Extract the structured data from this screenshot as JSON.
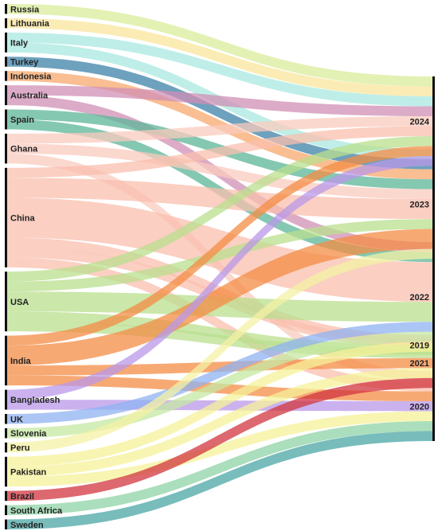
{
  "chart_data": {
    "type": "sankey",
    "sources": [
      {
        "id": "russia",
        "label": "Russia"
      },
      {
        "id": "lithuania",
        "label": "Lithuania"
      },
      {
        "id": "italy",
        "label": "Italy"
      },
      {
        "id": "turkey",
        "label": "Turkey"
      },
      {
        "id": "indonesia",
        "label": "Indonesia"
      },
      {
        "id": "australia",
        "label": "Australia"
      },
      {
        "id": "spain",
        "label": "Spain"
      },
      {
        "id": "ghana",
        "label": "Ghana"
      },
      {
        "id": "china",
        "label": "China"
      },
      {
        "id": "usa",
        "label": "USA"
      },
      {
        "id": "india",
        "label": "India"
      },
      {
        "id": "bangladesh",
        "label": "Bangladesh"
      },
      {
        "id": "uk",
        "label": "UK"
      },
      {
        "id": "slovenia",
        "label": "Slovenia"
      },
      {
        "id": "peru",
        "label": "Peru"
      },
      {
        "id": "pakistan",
        "label": "Pakistan"
      },
      {
        "id": "brazil",
        "label": "Brazil"
      },
      {
        "id": "south_africa",
        "label": "South Africa"
      },
      {
        "id": "sweden",
        "label": "Sweden"
      }
    ],
    "targets": [
      {
        "id": "y2024",
        "label": "2024"
      },
      {
        "id": "y2023",
        "label": "2023"
      },
      {
        "id": "y2022",
        "label": "2022"
      },
      {
        "id": "y2019",
        "label": "2019"
      },
      {
        "id": "y2021",
        "label": "2021"
      },
      {
        "id": "y2020",
        "label": "2020"
      }
    ],
    "colors": {
      "russia": "#d9ec9b",
      "lithuania": "#fae59c",
      "italy": "#a9e8e0",
      "turkey": "#3d82a7",
      "indonesia": "#f7a86c",
      "australia": "#d08fb5",
      "spain": "#5cb598",
      "ghana": "#f9cbbd",
      "china": "#f9bfae",
      "usa": "#b9df8e",
      "india": "#f48c44",
      "bangladesh": "#b998e8",
      "uk": "#8fb3f2",
      "slovenia": "#c6e8a3",
      "peru": "#f4f2a4",
      "pakistan": "#f6f29a",
      "brazil": "#d2353f",
      "south_africa": "#8fd3a6",
      "sweden": "#4ba6a6"
    },
    "links": [
      {
        "source": "russia",
        "target": "y2024",
        "value": 1
      },
      {
        "source": "lithuania",
        "target": "y2024",
        "value": 1
      },
      {
        "source": "italy",
        "target": "y2024",
        "value": 1
      },
      {
        "source": "italy",
        "target": "y2023",
        "value": 1
      },
      {
        "source": "turkey",
        "target": "y2023",
        "value": 1
      },
      {
        "source": "indonesia",
        "target": "y2023",
        "value": 1
      },
      {
        "source": "australia",
        "target": "y2024",
        "value": 1
      },
      {
        "source": "australia",
        "target": "y2022",
        "value": 1
      },
      {
        "source": "spain",
        "target": "y2023",
        "value": 1
      },
      {
        "source": "spain",
        "target": "y2022",
        "value": 1
      },
      {
        "source": "ghana",
        "target": "y2024",
        "value": 1
      },
      {
        "source": "ghana",
        "target": "y2023",
        "value": 1
      },
      {
        "source": "ghana",
        "target": "y2020",
        "value": 1
      },
      {
        "source": "china",
        "target": "y2024",
        "value": 1
      },
      {
        "source": "china",
        "target": "y2023",
        "value": 2
      },
      {
        "source": "china",
        "target": "y2022",
        "value": 4
      },
      {
        "source": "china",
        "target": "y2019",
        "value": 1
      },
      {
        "source": "china",
        "target": "y2021",
        "value": 1
      },
      {
        "source": "china",
        "target": "y2020",
        "value": 1
      },
      {
        "source": "usa",
        "target": "y2024",
        "value": 1
      },
      {
        "source": "usa",
        "target": "y2023",
        "value": 1
      },
      {
        "source": "usa",
        "target": "y2022",
        "value": 2
      },
      {
        "source": "usa",
        "target": "y2019",
        "value": 1
      },
      {
        "source": "usa",
        "target": "y2021",
        "value": 1
      },
      {
        "source": "india",
        "target": "y2024",
        "value": 1
      },
      {
        "source": "india",
        "target": "y2023",
        "value": 2
      },
      {
        "source": "india",
        "target": "y2021",
        "value": 1
      },
      {
        "source": "india",
        "target": "y2020",
        "value": 1
      },
      {
        "source": "bangladesh",
        "target": "y2024",
        "value": 1
      },
      {
        "source": "bangladesh",
        "target": "y2020",
        "value": 1
      },
      {
        "source": "uk",
        "target": "y2022",
        "value": 1
      },
      {
        "source": "slovenia",
        "target": "y2022",
        "value": 1
      },
      {
        "source": "peru",
        "target": "y2023",
        "value": 1
      },
      {
        "source": "pakistan",
        "target": "y2022",
        "value": 1
      },
      {
        "source": "pakistan",
        "target": "y2021",
        "value": 1
      },
      {
        "source": "pakistan",
        "target": "y2020",
        "value": 1
      },
      {
        "source": "brazil",
        "target": "y2021",
        "value": 1
      },
      {
        "source": "south_africa",
        "target": "y2020",
        "value": 1
      },
      {
        "source": "sweden",
        "target": "y2020",
        "value": 1
      }
    ]
  }
}
